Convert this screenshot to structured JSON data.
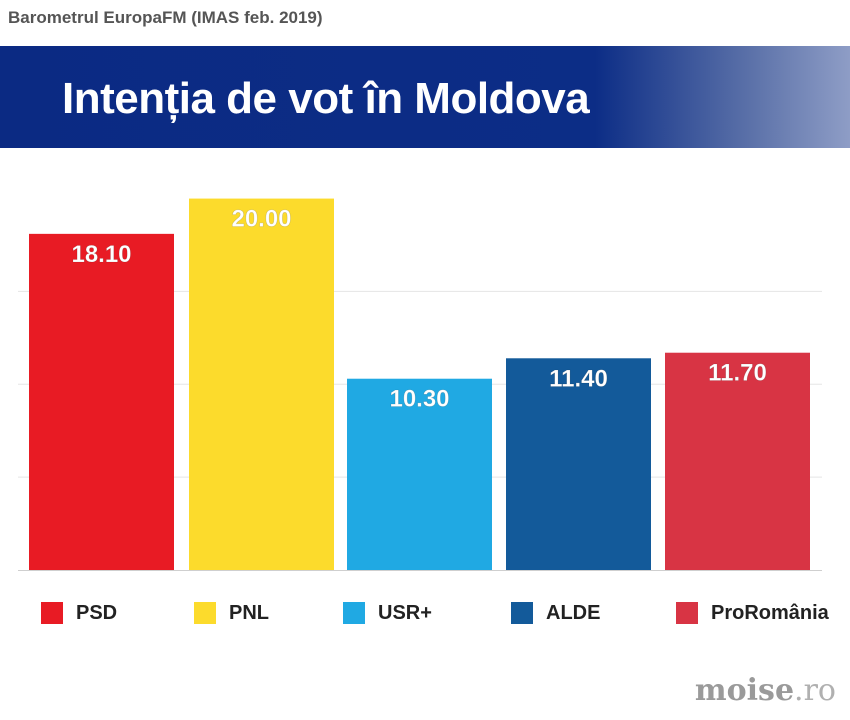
{
  "source_label": "Barometrul EuropaFM (IMAS feb. 2019)",
  "banner": {
    "title": "Intenția de vot în Moldova"
  },
  "watermark": {
    "name": "moise",
    "tld": ".ro"
  },
  "chart_data": {
    "type": "bar",
    "title": "Intenția de vot în Moldova",
    "xlabel": "",
    "ylabel": "",
    "ylim": [
      0,
      20.3
    ],
    "grid": true,
    "legend_position": "bottom",
    "categories": [
      "PSD",
      "PNL",
      "USR+",
      "ALDE",
      "ProRomânia"
    ],
    "values": [
      18.1,
      20.0,
      10.3,
      11.4,
      11.7
    ],
    "value_labels": [
      "18.10",
      "20.00",
      "10.30",
      "11.40",
      "11.70"
    ],
    "colors": [
      "#e81b24",
      "#fcdb2c",
      "#20a9e3",
      "#135a9a",
      "#d83444"
    ]
  },
  "legend": [
    {
      "label": "PSD",
      "color": "#e81b24"
    },
    {
      "label": "PNL",
      "color": "#fcdb2c"
    },
    {
      "label": "USR+",
      "color": "#20a9e3"
    },
    {
      "label": "ALDE",
      "color": "#135a9a"
    },
    {
      "label": "ProRomânia",
      "color": "#d83444"
    }
  ]
}
